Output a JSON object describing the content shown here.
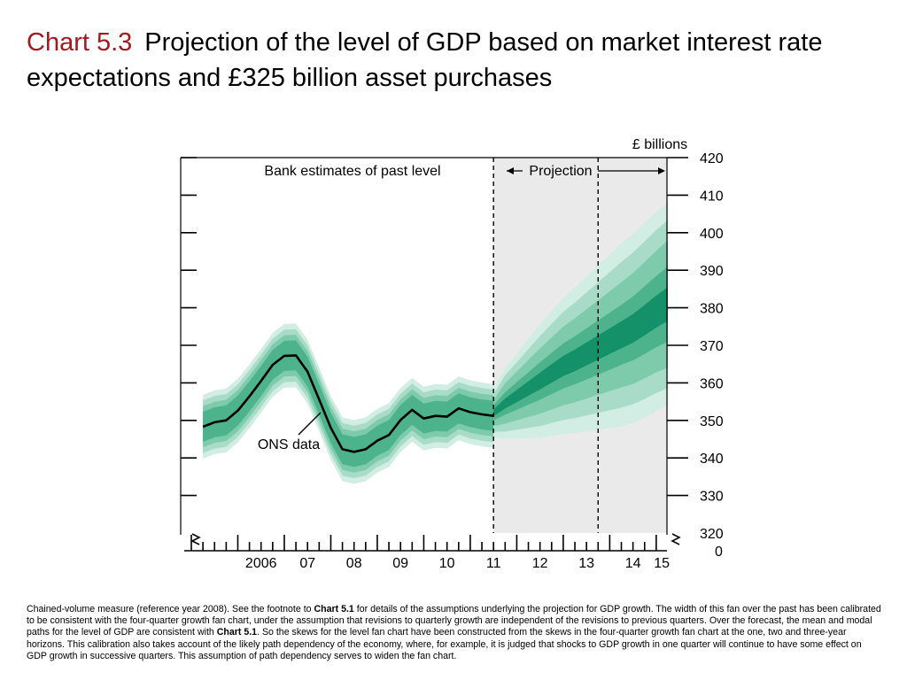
{
  "title": {
    "number": "Chart 5.3",
    "text": "Projection of the level of GDP based on market interest rate expectations and £325 billion asset purchases"
  },
  "footnote": {
    "part1": "Chained-volume measure (reference year 2008).  See the footnote to ",
    "ref1": "Chart 5.1",
    "part2": " for details of the assumptions underlying the projection for GDP growth.  The width of this fan over the past has been calibrated to be consistent with the four-quarter growth fan chart, under the assumption that revisions to quarterly growth are independent of the revisions to previous quarters.  Over the forecast, the mean and modal paths for the level of GDP are consistent with ",
    "ref2": "Chart 5.1",
    "part3": ".  So the skews for the level fan chart have been constructed from the skews in the four-quarter growth fan chart at the one, two and three-year horizons.  This calibration also takes account of the likely path dependency of the economy, where, for example, it is judged that shocks to GDP growth in one quarter will continue to have some effect on GDP growth in successive quarters.  This assumption of path dependency serves to widen the fan chart."
  },
  "chart_data": {
    "type": "area",
    "unit_label": "£ billions",
    "x_tick_labels": [
      "2006",
      "07",
      "08",
      "09",
      "10",
      "11",
      "12",
      "13",
      "14",
      "15"
    ],
    "ylim": [
      320,
      420
    ],
    "y_ticks": [
      330,
      340,
      350,
      360,
      370,
      380,
      390,
      400,
      410,
      420
    ],
    "y_bottom_labels": [
      "320",
      "0"
    ],
    "annotations": {
      "past": "Bank estimates of past level",
      "projection": "Projection",
      "ons": "ONS data"
    },
    "projection_start": 2011.5,
    "dashed_lines": [
      2011.5,
      2013.75
    ],
    "series": [
      {
        "name": "ONS data",
        "x": [
          2005.25,
          2005.5,
          2005.75,
          2006.0,
          2006.25,
          2006.5,
          2006.75,
          2007.0,
          2007.25,
          2007.5,
          2007.75,
          2008.0,
          2008.25,
          2008.5,
          2008.75,
          2009.0,
          2009.25,
          2009.5,
          2009.75,
          2010.0,
          2010.25,
          2010.5,
          2010.75,
          2011.0,
          2011.25,
          2011.5
        ],
        "values": [
          348.3,
          349.5,
          350.0,
          352.6,
          356.4,
          360.5,
          364.8,
          367.2,
          367.3,
          363.0,
          355.6,
          348.0,
          342.3,
          341.6,
          342.3,
          344.6,
          346.1,
          350.1,
          352.8,
          350.5,
          351.2,
          351.0,
          353.2,
          352.2,
          351.6,
          351.2
        ]
      }
    ],
    "past_band_halfwidths": [
      4.0,
      5.5,
      7.0,
      8.5
    ],
    "projection": {
      "x": [
        2011.5,
        2011.75,
        2012.0,
        2012.25,
        2012.5,
        2012.75,
        2013.0,
        2013.25,
        2013.5,
        2013.75,
        2014.0,
        2014.25,
        2014.5,
        2014.75,
        2015.0,
        2015.25
      ],
      "center": [
        352.0,
        354.5,
        356.5,
        358.5,
        360.5,
        362.5,
        364.5,
        366.0,
        367.7,
        369.4,
        371.1,
        372.8,
        374.5,
        376.7,
        379.0,
        381.0
      ],
      "halfwidths": [
        [
          2.0,
          3.0,
          3.7,
          4.3,
          5.0,
          5.5,
          6.0,
          6.4,
          6.8,
          7.2,
          7.6,
          8.0,
          8.5,
          9.0,
          9.5,
          10.0
        ],
        [
          3.5,
          5.4,
          6.5,
          7.6,
          8.7,
          9.6,
          10.5,
          11.2,
          11.9,
          12.6,
          13.3,
          14.0,
          14.8,
          15.5,
          16.2,
          17.0
        ],
        [
          5.0,
          7.5,
          9.0,
          10.5,
          12.0,
          13.2,
          14.4,
          15.4,
          16.4,
          17.4,
          18.4,
          19.4,
          20.2,
          21.0,
          21.7,
          22.4
        ],
        [
          6.5,
          9.4,
          11.3,
          13.2,
          15.1,
          16.6,
          18.1,
          19.4,
          20.6,
          21.9,
          23.1,
          24.4,
          25.2,
          26.0,
          26.5,
          27.0
        ]
      ]
    },
    "colors": {
      "fan": [
        "#d2ede3",
        "#a9dcc8",
        "#7ecbac",
        "#4db38c",
        "#15916a"
      ],
      "projection_bg": "#eaeaea",
      "line": "#000000",
      "title_number": "#a3191f"
    }
  }
}
